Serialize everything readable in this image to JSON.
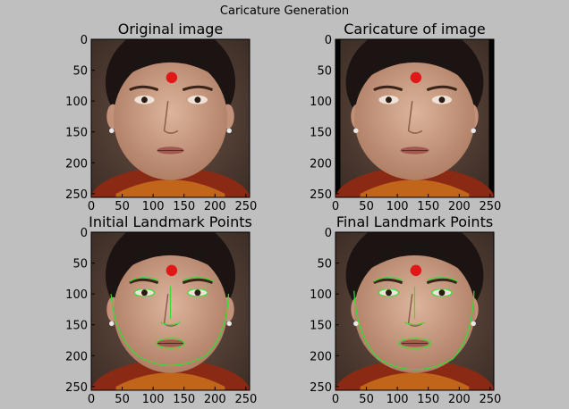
{
  "figure": {
    "suptitle": "Caricature Generation"
  },
  "panels": [
    {
      "title": "Original image",
      "x_ticks": [
        "0",
        "50",
        "100",
        "150",
        "200",
        "250"
      ],
      "y_ticks": [
        "0",
        "50",
        "100",
        "150",
        "200",
        "250"
      ],
      "image": "face-photo",
      "landmarks": false,
      "caricature": false
    },
    {
      "title": "Caricature of image",
      "x_ticks": [
        "0",
        "50",
        "100",
        "150",
        "200",
        "250"
      ],
      "y_ticks": [
        "0",
        "50",
        "100",
        "150",
        "200",
        "250"
      ],
      "image": "face-photo-warped",
      "landmarks": false,
      "caricature": true
    },
    {
      "title": "Initial Landmark Points",
      "x_ticks": [
        "0",
        "50",
        "100",
        "150",
        "200",
        "250"
      ],
      "y_ticks": [
        "0",
        "50",
        "100",
        "150",
        "200",
        "250"
      ],
      "image": "face-photo",
      "landmarks": true,
      "caricature": false
    },
    {
      "title": "Final Landmark Points",
      "x_ticks": [
        "0",
        "50",
        "100",
        "150",
        "200",
        "250"
      ],
      "y_ticks": [
        "0",
        "50",
        "100",
        "150",
        "200",
        "250"
      ],
      "image": "face-photo",
      "landmarks": true,
      "caricature": true
    }
  ],
  "colors": {
    "background": "#bfbfbf",
    "landmark_line": "#33dd33",
    "bindi": "#e01818",
    "hair": "#1b1412",
    "skin": "#c89a7f",
    "backdrop": "#5a4438"
  }
}
